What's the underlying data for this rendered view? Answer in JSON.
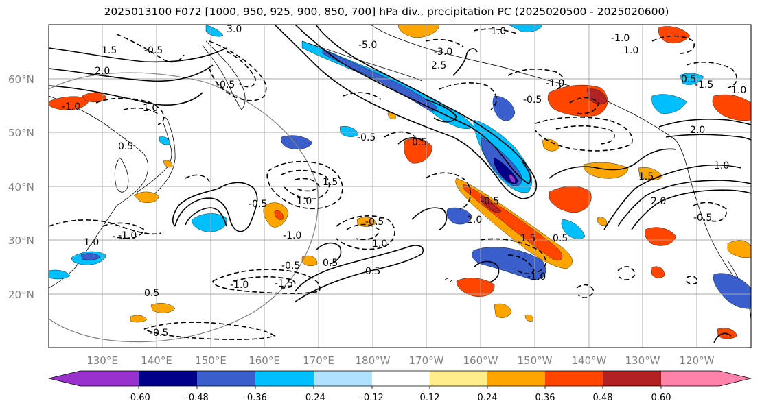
{
  "title": "2025013100 F072 [1000, 950, 925, 900, 850, 700] hPa div., precipitation PC (2025020500 - 2025020600)",
  "lat_labels": [
    "60°N",
    "50°N",
    "40°N",
    "30°N",
    "20°N"
  ],
  "lon_labels": [
    "130°E",
    "140°E",
    "150°E",
    "160°E",
    "170°E",
    "180°W",
    "170°W",
    "160°W",
    "150°W",
    "140°W",
    "130°W",
    "120°W"
  ],
  "colorbar": {
    "ticks": [
      "-0.60",
      "-0.48",
      "-0.36",
      "-0.24",
      "-0.12",
      "0.12",
      "0.24",
      "0.36",
      "0.48",
      "0.60"
    ],
    "colors": [
      "#9932cc",
      "#00008b",
      "#3a5fcd",
      "#00bfff",
      "#b0e2ff",
      "#ffffff",
      "#ffec8b",
      "#ffa500",
      "#ff4500",
      "#b22222",
      "#ff82ab"
    ]
  },
  "contour_labels": [
    "3.0",
    "-0.5",
    "1.5",
    "2.0",
    "-0.5",
    "1.0",
    "0.5",
    "-5.0",
    "-3.0",
    "2.5",
    "1.0",
    "-1.0",
    "1.0",
    "-1.0",
    "0.5",
    "-0.5",
    "0.5",
    "-0.5",
    "1.0",
    "1.5",
    "-0.5",
    "-1.0",
    "-0.5",
    "1.0",
    "-0.5",
    "0.5",
    "-1.0",
    "0.5",
    "-1.0",
    "-1.5",
    "0.5",
    "-0.5",
    "1.0",
    "-0.5",
    "1.5",
    "-1.0",
    "2.0",
    "1.0",
    "-0.5",
    "2.0",
    "1.5",
    "0.5",
    "1.0",
    "-1.5",
    "1.0",
    "-1.0"
  ]
}
